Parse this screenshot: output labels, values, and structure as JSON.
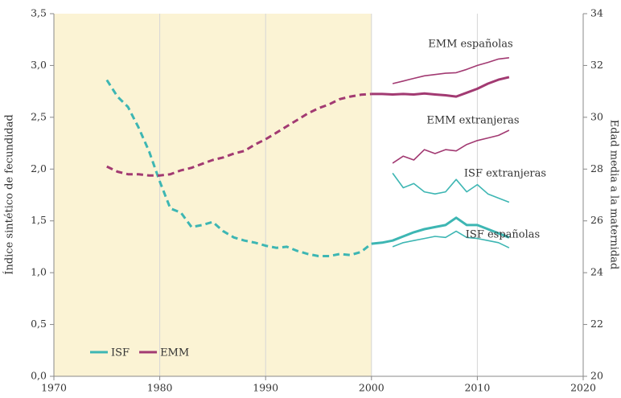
{
  "chart_data": {
    "type": "line",
    "x": [
      1975,
      1976,
      1977,
      1978,
      1979,
      1980,
      1981,
      1982,
      1983,
      1984,
      1985,
      1986,
      1987,
      1988,
      1989,
      1990,
      1991,
      1992,
      1993,
      1994,
      1995,
      1996,
      1997,
      1998,
      1999,
      2000,
      2001,
      2002,
      2003,
      2004,
      2005,
      2006,
      2007,
      2008,
      2009,
      2010,
      2011,
      2012,
      2013
    ],
    "xlim": [
      1970,
      2020
    ],
    "xticks": [
      1970,
      1980,
      1990,
      2000,
      2010,
      2020
    ],
    "ylim": [
      0,
      3.5
    ],
    "yticks": [
      {
        "value": 0,
        "label": "0,0"
      },
      {
        "value": 0.5,
        "label": "0,5"
      },
      {
        "value": 1,
        "label": "1,0"
      },
      {
        "value": 1.5,
        "label": "1,5"
      },
      {
        "value": 2,
        "label": "2,0"
      },
      {
        "value": 2.5,
        "label": "2,5"
      },
      {
        "value": 3,
        "label": "3,0"
      },
      {
        "value": 3.5,
        "label": "3,5"
      }
    ],
    "y2lim": [
      20,
      34
    ],
    "y2ticks": [
      20,
      22,
      24,
      26,
      28,
      30,
      32,
      34
    ],
    "ylabel": "Índice sintético de fecundidad",
    "y2label": "Edad media a la maternidad",
    "grid": "x",
    "shaded_xrange": [
      1970,
      2000
    ],
    "solid_from": 2000,
    "legend_position": "lower left",
    "series": [
      {
        "name": "ISF",
        "color": "#3db6b3",
        "legend": true,
        "thick": true,
        "values": [
          2.86,
          2.7,
          2.6,
          2.4,
          2.17,
          1.88,
          1.62,
          1.58,
          1.44,
          1.46,
          1.49,
          1.4,
          1.34,
          1.31,
          1.29,
          1.26,
          1.24,
          1.25,
          1.21,
          1.18,
          1.16,
          1.16,
          1.18,
          1.17,
          1.2,
          1.28,
          1.29,
          1.31,
          1.35,
          1.39,
          1.42,
          1.44,
          1.46,
          1.53,
          1.46,
          1.46,
          1.42,
          1.38,
          1.34
        ]
      },
      {
        "name": "EMM",
        "color": "#a23a72",
        "legend": true,
        "thick": true,
        "axis": "y2",
        "values": [
          28.1,
          27.9,
          27.8,
          27.8,
          27.75,
          27.75,
          27.8,
          27.95,
          28.05,
          28.2,
          28.35,
          28.45,
          28.6,
          28.7,
          28.95,
          29.15,
          29.4,
          29.65,
          29.9,
          30.15,
          30.35,
          30.5,
          30.7,
          30.8,
          30.87,
          30.9,
          30.9,
          30.88,
          30.9,
          30.88,
          30.92,
          30.88,
          30.85,
          30.8,
          30.95,
          31.1,
          31.3,
          31.45,
          31.55
        ]
      },
      {
        "name": "EMM españolas",
        "color": "#a23a72",
        "legend": false,
        "thick": false,
        "axis": "y2",
        "values": [
          null,
          null,
          null,
          null,
          null,
          null,
          null,
          null,
          null,
          null,
          null,
          null,
          null,
          null,
          null,
          null,
          null,
          null,
          null,
          null,
          null,
          null,
          null,
          null,
          null,
          null,
          null,
          31.3,
          31.4,
          31.5,
          31.6,
          31.65,
          31.7,
          31.72,
          31.85,
          32.0,
          32.12,
          32.25,
          32.3
        ]
      },
      {
        "name": "EMM extranjeras",
        "color": "#a23a72",
        "legend": false,
        "thick": false,
        "axis": "y2",
        "values": [
          null,
          null,
          null,
          null,
          null,
          null,
          null,
          null,
          null,
          null,
          null,
          null,
          null,
          null,
          null,
          null,
          null,
          null,
          null,
          null,
          null,
          null,
          null,
          null,
          null,
          null,
          null,
          28.23,
          28.5,
          28.35,
          28.75,
          28.6,
          28.75,
          28.7,
          28.95,
          29.1,
          29.2,
          29.3,
          29.5
        ]
      },
      {
        "name": "ISF extranjeras",
        "color": "#3db6b3",
        "legend": false,
        "thick": false,
        "values": [
          null,
          null,
          null,
          null,
          null,
          null,
          null,
          null,
          null,
          null,
          null,
          null,
          null,
          null,
          null,
          null,
          null,
          null,
          null,
          null,
          null,
          null,
          null,
          null,
          null,
          null,
          null,
          1.96,
          1.82,
          1.86,
          1.78,
          1.76,
          1.78,
          1.9,
          1.78,
          1.85,
          1.76,
          1.72,
          1.68
        ]
      },
      {
        "name": "ISF españolas",
        "color": "#3db6b3",
        "legend": false,
        "thick": false,
        "values": [
          null,
          null,
          null,
          null,
          null,
          null,
          null,
          null,
          null,
          null,
          null,
          null,
          null,
          null,
          null,
          null,
          null,
          null,
          null,
          null,
          null,
          null,
          null,
          null,
          null,
          null,
          null,
          1.25,
          1.29,
          1.31,
          1.33,
          1.35,
          1.34,
          1.4,
          1.34,
          1.33,
          1.31,
          1.29,
          1.24
        ]
      }
    ]
  }
}
